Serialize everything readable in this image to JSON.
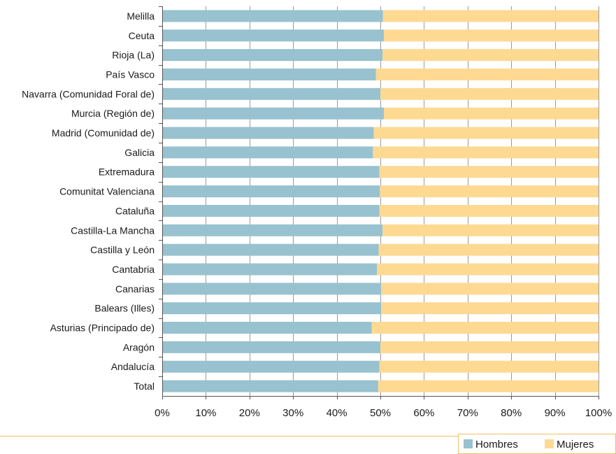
{
  "chart_data": {
    "type": "bar",
    "orientation": "horizontal",
    "stacked": "percent",
    "categories": [
      "Melilla",
      "Ceuta",
      "Rioja (La)",
      "País Vasco",
      "Navarra (Comunidad Foral de)",
      "Murcia (Región de)",
      "Madrid (Comunidad de)",
      "Galicia",
      "Extremadura",
      "Comunitat Valenciana",
      "Cataluña",
      "Castilla-La Mancha",
      "Castilla y León",
      "Cantabria",
      "Canarias",
      "Balears (Illes)",
      "Asturias (Principado de)",
      "Aragón",
      "Andalucía",
      "Total"
    ],
    "series": [
      {
        "name": "Hombres",
        "color": "#98c2cf",
        "values": [
          50.6,
          50.8,
          50.5,
          49.0,
          50.0,
          50.8,
          48.5,
          48.3,
          49.8,
          49.9,
          49.8,
          50.5,
          49.6,
          49.2,
          50.2,
          50.2,
          48.0,
          50.0,
          49.8,
          49.5
        ]
      },
      {
        "name": "Mujeres",
        "color": "#fdd992",
        "values": [
          49.4,
          49.2,
          49.5,
          51.0,
          50.0,
          49.2,
          51.5,
          51.7,
          50.2,
          50.1,
          50.2,
          49.5,
          50.4,
          50.8,
          49.8,
          49.8,
          52.0,
          50.0,
          50.2,
          50.5
        ]
      }
    ],
    "x_ticks": [
      "0%",
      "10%",
      "20%",
      "30%",
      "40%",
      "50%",
      "60%",
      "70%",
      "80%",
      "90%",
      "100%"
    ],
    "xlim": [
      0,
      100
    ],
    "grid": "vertical",
    "legend": "bottom-right",
    "title": "",
    "xlabel": "",
    "ylabel": ""
  }
}
